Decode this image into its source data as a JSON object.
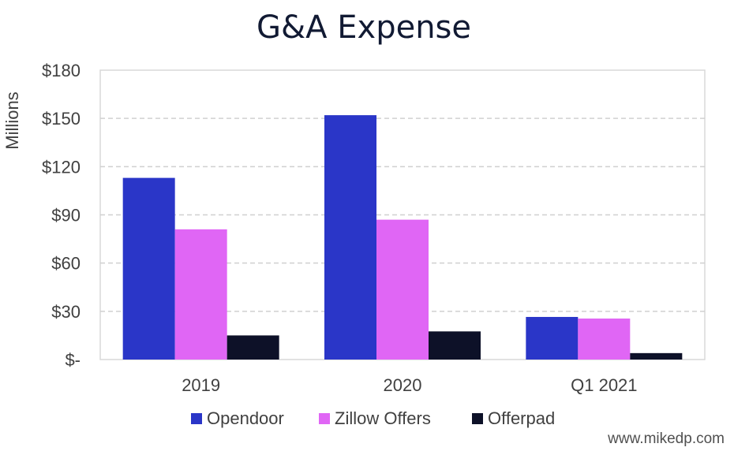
{
  "chart_data": {
    "type": "bar",
    "title": "G&A Expense",
    "xlabel": "",
    "ylabel": "Millions",
    "categories": [
      "2019",
      "2020",
      "Q1 2021"
    ],
    "series": [
      {
        "name": "Opendoor",
        "color": "#2a36c8",
        "values": [
          113,
          152,
          26.5
        ]
      },
      {
        "name": "Zillow Offers",
        "color": "#e066f5",
        "values": [
          81,
          87,
          25.5
        ]
      },
      {
        "name": "Offerpad",
        "color": "#0d1128",
        "values": [
          15,
          17.5,
          4
        ]
      }
    ],
    "ylim": [
      0,
      180
    ],
    "yticks": [
      0,
      30,
      60,
      90,
      120,
      150,
      180
    ],
    "ytick_labels": [
      "$-",
      "$30",
      "$60",
      "$90",
      "$120",
      "$150",
      "$180"
    ],
    "grid": true,
    "legend_position": "bottom-center"
  },
  "watermark": "www.mikedp.com"
}
